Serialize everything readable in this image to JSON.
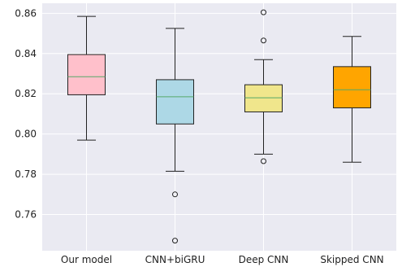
{
  "colors": {
    "plot_background": "#eaeaf2",
    "grid": "#ffffff",
    "box_edge": "#222222",
    "median": "#55a868",
    "outlier_edge": "#222222"
  },
  "chart_data": {
    "type": "boxplot",
    "title": "",
    "xlabel": "",
    "ylabel": "",
    "ylim": [
      0.742,
      0.865
    ],
    "yticks": [
      0.76,
      0.78,
      0.8,
      0.82,
      0.84,
      0.86
    ],
    "ytick_labels": [
      "0.76",
      "0.78",
      "0.80",
      "0.82",
      "0.84",
      "0.86"
    ],
    "grid": true,
    "categories": [
      "Our model",
      "CNN+biGRU",
      "Deep CNN",
      "Skipped CNN"
    ],
    "boxes": [
      {
        "name": "Our model",
        "fill": "#ffc0cb",
        "whisker_low": 0.797,
        "q1": 0.8195,
        "median": 0.8285,
        "q3": 0.8395,
        "whisker_high": 0.8585,
        "outliers": []
      },
      {
        "name": "CNN+biGRU",
        "fill": "#add8e6",
        "whisker_low": 0.7815,
        "q1": 0.805,
        "median": 0.8185,
        "q3": 0.827,
        "whisker_high": 0.8525,
        "outliers": [
          0.77,
          0.747
        ]
      },
      {
        "name": "Deep CNN",
        "fill": "#f0e68c",
        "whisker_low": 0.79,
        "q1": 0.811,
        "median": 0.818,
        "q3": 0.8245,
        "whisker_high": 0.837,
        "outliers": [
          0.8605,
          0.8465,
          0.7865
        ]
      },
      {
        "name": "Skipped CNN",
        "fill": "#ffa500",
        "whisker_low": 0.786,
        "q1": 0.813,
        "median": 0.822,
        "q3": 0.8335,
        "whisker_high": 0.8485,
        "outliers": []
      }
    ]
  }
}
